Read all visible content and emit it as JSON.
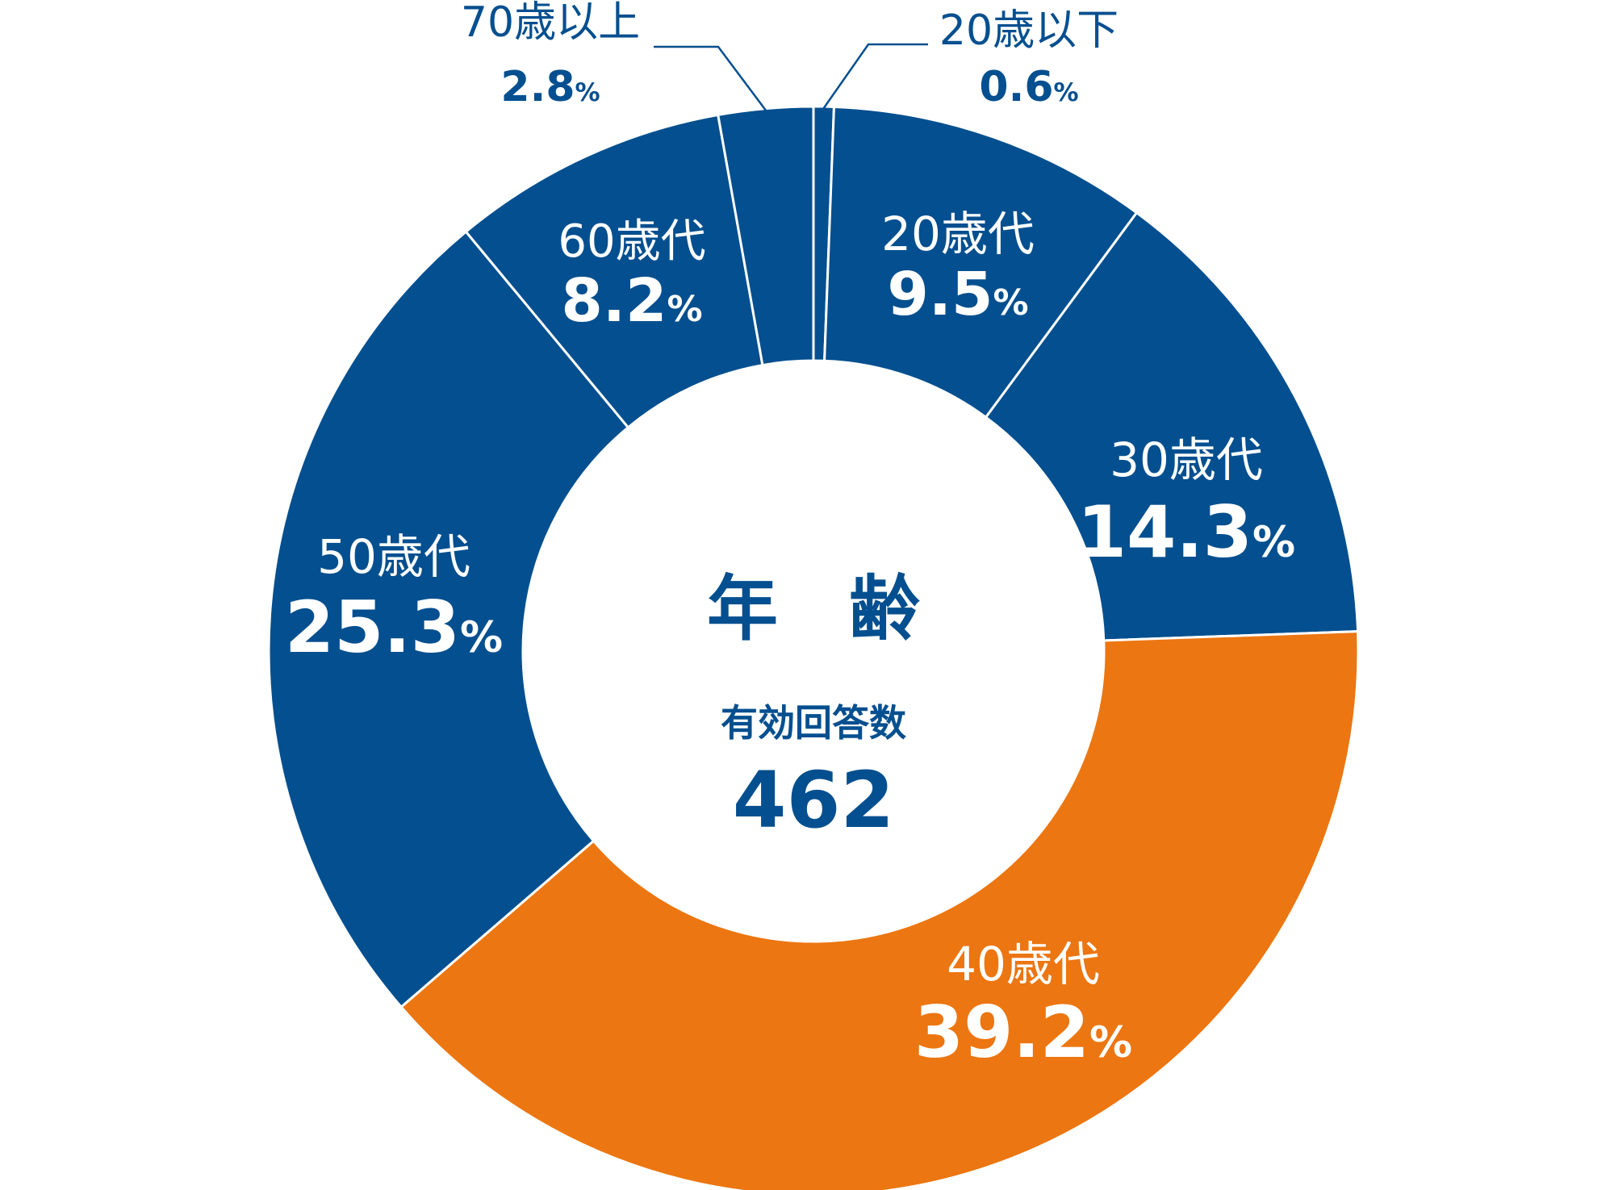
{
  "chart_data": {
    "type": "pie",
    "style": "donut",
    "center": {
      "title": "年　齢",
      "subtitle": "有効回答数",
      "total": "462"
    },
    "unit": "%",
    "colors": {
      "primary": "#044f8f",
      "accent": "#ec7611",
      "text_dark": "#044f8f",
      "text_light": "#ffffff"
    },
    "slices": [
      {
        "label": "20歳以下",
        "value": 0.6,
        "display": "0.6",
        "color": "#044f8f"
      },
      {
        "label": "20歳代",
        "value": 9.5,
        "display": "9.5",
        "color": "#044f8f"
      },
      {
        "label": "30歳代",
        "value": 14.3,
        "display": "14.3",
        "color": "#044f8f"
      },
      {
        "label": "40歳代",
        "value": 39.2,
        "display": "39.2",
        "color": "#ec7611"
      },
      {
        "label": "50歳代",
        "value": 25.3,
        "display": "25.3",
        "color": "#044f8f"
      },
      {
        "label": "60歳代",
        "value": 8.2,
        "display": "8.2",
        "color": "#044f8f"
      },
      {
        "label": "70歳以上",
        "value": 2.8,
        "display": "2.8",
        "color": "#044f8f"
      }
    ]
  }
}
